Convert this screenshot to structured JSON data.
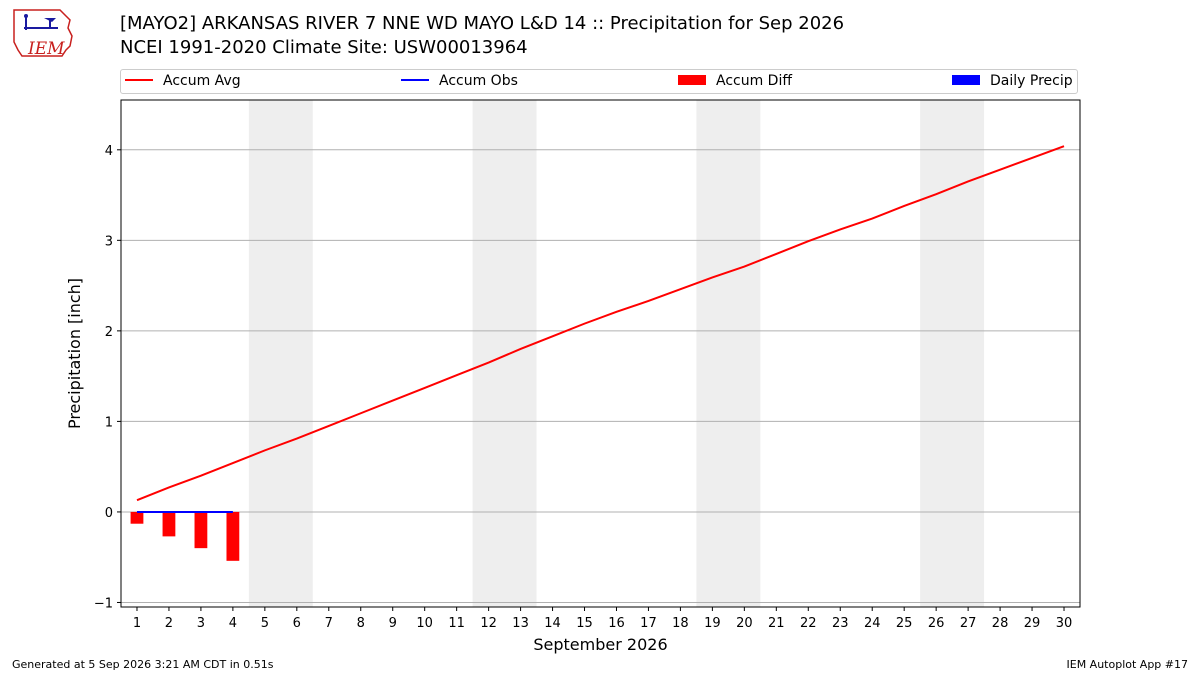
{
  "title": {
    "line1": "[MAYO2] ARKANSAS RIVER 7 NNE WD MAYO L&D 14 :: Precipitation for Sep 2026",
    "line2": "NCEI 1991-2020 Climate Site: USW00013964"
  },
  "logo": {
    "text": "IEM"
  },
  "legend": [
    {
      "label": "Accum Avg",
      "kind": "line",
      "color": "#ff0000"
    },
    {
      "label": "Accum Obs",
      "kind": "line",
      "color": "#0000ff"
    },
    {
      "label": "Accum Diff",
      "kind": "patch",
      "color": "#ff0000"
    },
    {
      "label": "Daily Precip",
      "kind": "patch",
      "color": "#0000ff"
    }
  ],
  "footer": {
    "left": "Generated at 5 Sep 2026 3:21 AM CDT in 0.51s",
    "right": "IEM Autoplot App #17"
  },
  "chart_data": {
    "type": "line",
    "xlabel": "September 2026",
    "ylabel": "Precipitation [inch]",
    "x": [
      1,
      2,
      3,
      4,
      5,
      6,
      7,
      8,
      9,
      10,
      11,
      12,
      13,
      14,
      15,
      16,
      17,
      18,
      19,
      20,
      21,
      22,
      23,
      24,
      25,
      26,
      27,
      28,
      29,
      30
    ],
    "xlim": [
      0.5,
      30.5
    ],
    "ylim": [
      -1.05,
      4.55
    ],
    "yticks": [
      -1,
      0,
      1,
      2,
      3,
      4
    ],
    "grid": "horizontal",
    "weekend_bands": [
      [
        4.5,
        6.5
      ],
      [
        11.5,
        13.5
      ],
      [
        18.5,
        20.5
      ],
      [
        25.5,
        27.5
      ]
    ],
    "series": [
      {
        "name": "Accum Avg",
        "kind": "line",
        "color": "#ff0000",
        "values": [
          0.13,
          0.27,
          0.4,
          0.54,
          0.68,
          0.81,
          0.95,
          1.09,
          1.23,
          1.37,
          1.51,
          1.65,
          1.8,
          1.94,
          2.08,
          2.21,
          2.33,
          2.46,
          2.59,
          2.71,
          2.85,
          2.99,
          3.12,
          3.24,
          3.38,
          3.51,
          3.65,
          3.78,
          3.91,
          4.04
        ]
      },
      {
        "name": "Accum Obs",
        "kind": "line",
        "color": "#0000ff",
        "x": [
          1,
          2,
          3,
          4
        ],
        "values": [
          0,
          0,
          0,
          0
        ]
      },
      {
        "name": "Accum Diff",
        "kind": "bar",
        "color": "#ff0000",
        "x": [
          1,
          2,
          3,
          4
        ],
        "values": [
          -0.13,
          -0.27,
          -0.4,
          -0.54
        ]
      },
      {
        "name": "Daily Precip",
        "kind": "bar",
        "color": "#0000ff",
        "x": [
          1,
          2,
          3,
          4
        ],
        "values": [
          0,
          0,
          0,
          0
        ]
      }
    ]
  }
}
